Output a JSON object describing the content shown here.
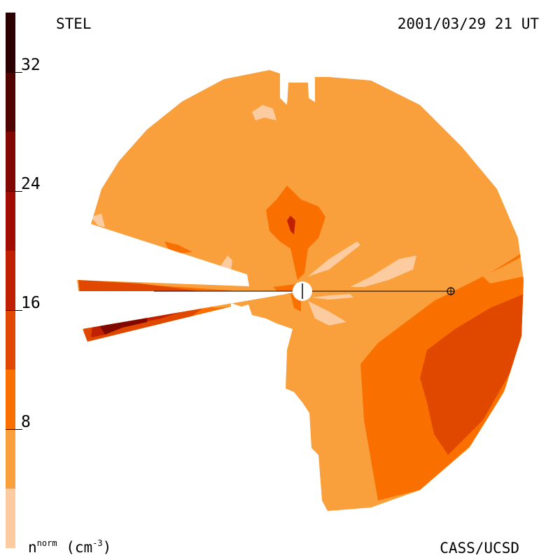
{
  "header": {
    "station": "STEL",
    "timestamp": "2001/03/29 21 UT"
  },
  "footer": {
    "credit": "CASS/UCSD",
    "unit_main": "n",
    "unit_super": "norm",
    "unit_paren": "(cm",
    "unit_exp": "-3",
    "unit_close": ")"
  },
  "colorbar": {
    "min": 0,
    "max": 36,
    "ticks": [
      {
        "value": 32,
        "label": "32"
      },
      {
        "value": 24,
        "label": "24"
      },
      {
        "value": 16,
        "label": "16"
      },
      {
        "value": 8,
        "label": "8"
      }
    ],
    "bands": [
      {
        "from": 0,
        "to": 4,
        "color": "#fccca0"
      },
      {
        "from": 4,
        "to": 8,
        "color": "#f9a03c"
      },
      {
        "from": 8,
        "to": 12,
        "color": "#fa7000"
      },
      {
        "from": 12,
        "to": 16,
        "color": "#e04800"
      },
      {
        "from": 16,
        "to": 20,
        "color": "#c02000"
      },
      {
        "from": 20,
        "to": 24,
        "color": "#a00c00"
      },
      {
        "from": 24,
        "to": 28,
        "color": "#800800"
      },
      {
        "from": 28,
        "to": 32,
        "color": "#500400"
      },
      {
        "from": 32,
        "to": 36,
        "color": "#2a0000"
      }
    ]
  }
}
